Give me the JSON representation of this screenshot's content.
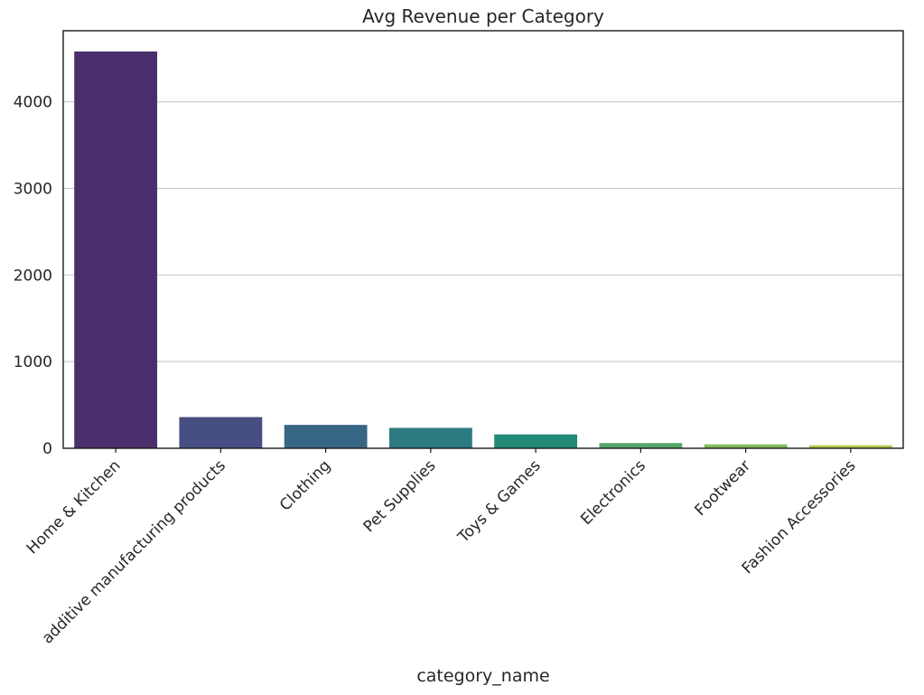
{
  "chart_data": {
    "type": "bar",
    "title": "Avg Revenue per Category",
    "xlabel": "category_name",
    "ylabel": "",
    "categories": [
      "Home & Kitchen",
      "additive manufacturing products",
      "Clothing",
      "Pet Supplies",
      "Toys & Games",
      "Electronics",
      "Footwear",
      "Fashion Accessories"
    ],
    "values": [
      4580,
      360,
      270,
      235,
      160,
      60,
      45,
      35
    ],
    "colors": [
      "#4a2f6c",
      "#474e82",
      "#386785",
      "#2b7b80",
      "#228a76",
      "#54a86b",
      "#82bd57",
      "#b4c848"
    ],
    "ylim": [
      0,
      4820
    ],
    "yticks": [
      0,
      1000,
      2000,
      3000,
      4000
    ],
    "grid": "y",
    "legend": "none"
  }
}
